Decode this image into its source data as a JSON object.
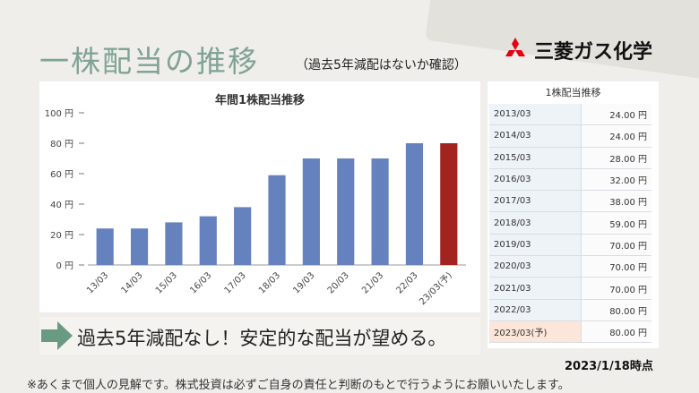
{
  "title": "一株配当の推移",
  "title_note": "（過去5年減配はないか確認）",
  "logo": {
    "text": "三菱ガス化学",
    "icon": "three-diamonds-icon",
    "color": "#e60012"
  },
  "chart_data": {
    "type": "bar",
    "title": "年間1株配当推移",
    "categories": [
      "13/03",
      "14/03",
      "15/03",
      "16/03",
      "17/03",
      "18/03",
      "19/03",
      "20/03",
      "21/03",
      "22/03",
      "23/03(予)"
    ],
    "values": [
      24,
      24,
      28,
      32,
      38,
      59,
      70,
      70,
      70,
      80,
      80
    ],
    "y_ticks": [
      "0 円",
      "20 円",
      "40 円",
      "60 円",
      "80 円",
      "100 円"
    ],
    "ylim": [
      0,
      100
    ],
    "colors": {
      "actual": "#6582bf",
      "forecast": "#a3241f"
    },
    "grid": false,
    "legend": "none"
  },
  "table": {
    "title": "1株配当推移",
    "rows": [
      {
        "year": "2013/03",
        "value": "24.00 円"
      },
      {
        "year": "2014/03",
        "value": "24.00 円"
      },
      {
        "year": "2015/03",
        "value": "28.00 円"
      },
      {
        "year": "2016/03",
        "value": "32.00 円"
      },
      {
        "year": "2017/03",
        "value": "38.00 円"
      },
      {
        "year": "2018/03",
        "value": "59.00 円"
      },
      {
        "year": "2019/03",
        "value": "70.00 円"
      },
      {
        "year": "2020/03",
        "value": "70.00 円"
      },
      {
        "year": "2021/03",
        "value": "70.00 円"
      },
      {
        "year": "2022/03",
        "value": "80.00 円"
      },
      {
        "year": "2023/03(予)",
        "value": "80.00 円"
      }
    ]
  },
  "message": "過去5年減配なし！安定的な配当が望める。",
  "date_stamp": "2023/1/18時点",
  "disclaimer": "※あくまで個人の見解です。株式投資は必ずご自身の責任と判断のもとで行うようにお願いいたします。"
}
